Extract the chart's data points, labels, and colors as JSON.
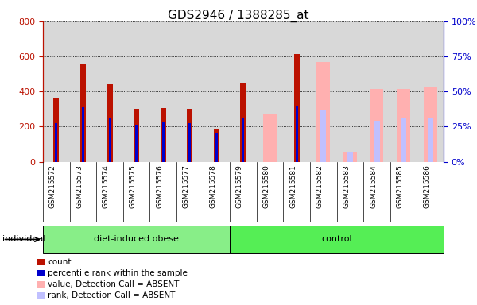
{
  "title": "GDS2946 / 1388285_at",
  "samples": [
    "GSM215572",
    "GSM215573",
    "GSM215574",
    "GSM215575",
    "GSM215576",
    "GSM215577",
    "GSM215578",
    "GSM215579",
    "GSM215580",
    "GSM215581",
    "GSM215582",
    "GSM215583",
    "GSM215584",
    "GSM215585",
    "GSM215586"
  ],
  "count": [
    360,
    560,
    440,
    300,
    305,
    300,
    185,
    450,
    null,
    615,
    null,
    null,
    null,
    null,
    null
  ],
  "percentile_rank": [
    220,
    310,
    245,
    210,
    225,
    220,
    160,
    250,
    null,
    320,
    null,
    null,
    null,
    null,
    null
  ],
  "absent_value": [
    null,
    null,
    null,
    null,
    null,
    null,
    null,
    null,
    275,
    null,
    570,
    55,
    415,
    415,
    430
  ],
  "absent_rank": [
    null,
    null,
    null,
    null,
    null,
    null,
    null,
    null,
    null,
    null,
    295,
    55,
    235,
    245,
    245
  ],
  "ylim_left": [
    0,
    800
  ],
  "ylim_right": [
    0,
    100
  ],
  "left_ticks": [
    0,
    200,
    400,
    600,
    800
  ],
  "right_ticks": [
    0,
    25,
    50,
    75,
    100
  ],
  "count_color": "#bb1100",
  "rank_color": "#0000cc",
  "absent_value_color": "#ffb0b0",
  "absent_rank_color": "#c0c0ff",
  "group_colors": {
    "diet-induced obese": "#88ee88",
    "control": "#55dd55"
  },
  "bg_color": "#d8d8d8",
  "white_bg": "#ffffff"
}
